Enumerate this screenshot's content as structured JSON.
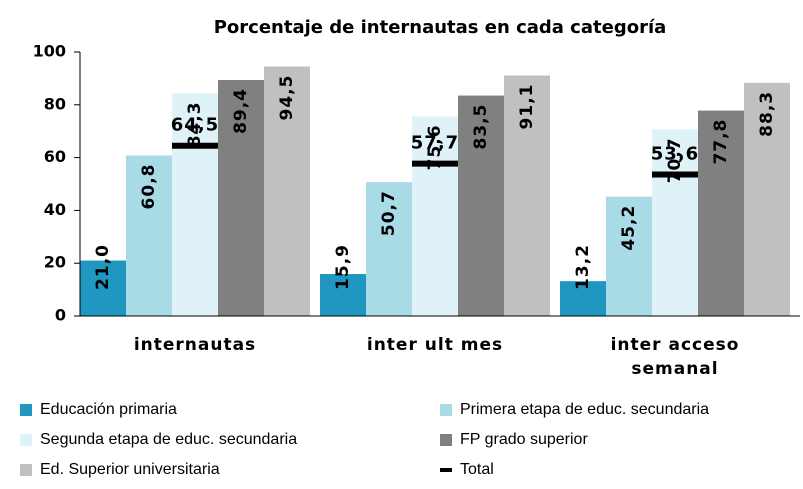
{
  "chart_data": {
    "type": "bar",
    "title": "Porcentaje de internautas en cada categoría",
    "categories": [
      "internautas",
      "inter ult mes",
      "inter acceso semanal"
    ],
    "series": [
      {
        "name": "Educación primaria",
        "color": "#1f97c0",
        "values": [
          21.0,
          15.9,
          13.2
        ],
        "value_labels": [
          "21,0",
          "15,9",
          "13,2"
        ]
      },
      {
        "name": "Primera etapa de educ. secundaria",
        "color": "#a9dbe7",
        "values": [
          60.8,
          50.7,
          45.2
        ],
        "value_labels": [
          "60,8",
          "50,7",
          "45,2"
        ]
      },
      {
        "name": "Segunda etapa de educ. secundaria",
        "color": "#def2f8",
        "values": [
          84.3,
          75.6,
          70.7
        ],
        "value_labels": [
          "84,3",
          "75,6",
          "70,7"
        ]
      },
      {
        "name": "FP grado superior",
        "color": "#808080",
        "values": [
          89.4,
          83.5,
          77.8
        ],
        "value_labels": [
          "89,4",
          "83,5",
          "77,8"
        ]
      },
      {
        "name": "Ed. Superior universitaria",
        "color": "#c0c0c0",
        "values": [
          94.5,
          91.1,
          88.3
        ],
        "value_labels": [
          "94,5",
          "91,1",
          "88,3"
        ]
      },
      {
        "name": "Total",
        "color": "#000000",
        "marker": "line",
        "values": [
          64.5,
          57.7,
          53.6
        ],
        "value_labels": [
          "64,5",
          "57,7",
          "53,6"
        ]
      }
    ],
    "ylim": [
      0,
      100
    ],
    "yticks": [
      0,
      20,
      40,
      60,
      80,
      100
    ],
    "grid": false,
    "legend": "bottom"
  }
}
